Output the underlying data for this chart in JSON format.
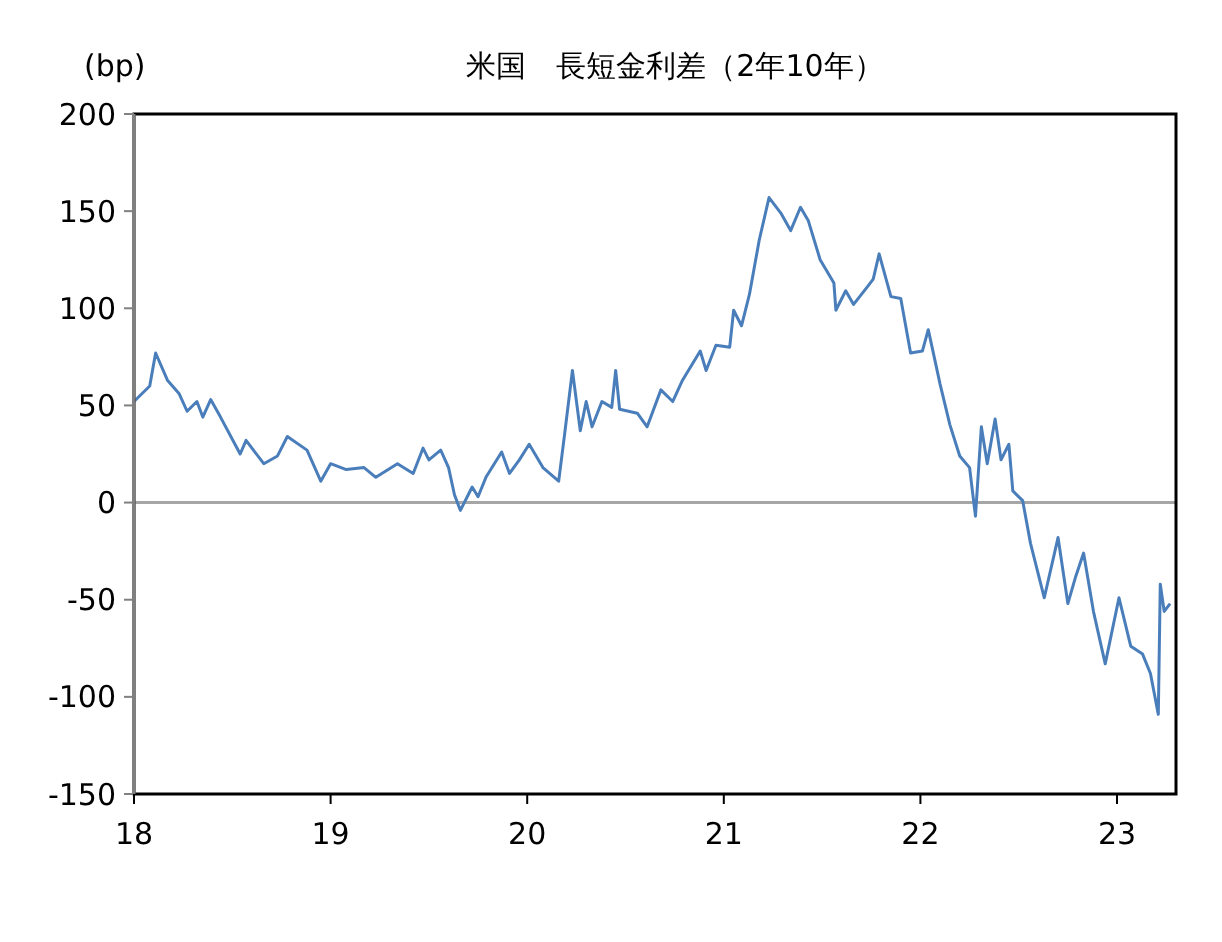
{
  "chart_data": {
    "type": "line",
    "title": "米国　長短金利差（2年10年）",
    "ylabel": "(bp)",
    "x": [
      18.0,
      18.08,
      18.11,
      18.17,
      18.23,
      18.27,
      18.32,
      18.35,
      18.39,
      18.44,
      18.54,
      18.57,
      18.66,
      18.73,
      18.78,
      18.88,
      18.95,
      19.0,
      19.08,
      19.17,
      19.23,
      19.34,
      19.42,
      19.47,
      19.5,
      19.56,
      19.6,
      19.63,
      19.66,
      19.72,
      19.75,
      19.79,
      19.87,
      19.91,
      19.96,
      20.01,
      20.08,
      20.16,
      20.19,
      20.23,
      20.27,
      20.3,
      20.33,
      20.38,
      20.43,
      20.45,
      20.47,
      20.56,
      20.61,
      20.68,
      20.74,
      20.79,
      20.88,
      20.91,
      20.96,
      21.03,
      21.05,
      21.09,
      21.13,
      21.18,
      21.23,
      21.29,
      21.34,
      21.39,
      21.43,
      21.49,
      21.56,
      21.57,
      21.62,
      21.66,
      21.73,
      21.76,
      21.79,
      21.85,
      21.9,
      21.95,
      22.01,
      22.04,
      22.1,
      22.15,
      22.2,
      22.25,
      22.28,
      22.31,
      22.34,
      22.38,
      22.41,
      22.45,
      22.47,
      22.52,
      22.56,
      22.63,
      22.7,
      22.75,
      22.79,
      22.83,
      22.88,
      22.94,
      23.01,
      23.07,
      23.13,
      23.17,
      23.21,
      23.22,
      23.24,
      23.27
    ],
    "series": [
      {
        "color": "#4a7ebb",
        "values": [
          52,
          60,
          77,
          63,
          56,
          47,
          52,
          44,
          53,
          44,
          25,
          32,
          20,
          24,
          34,
          27,
          11,
          20,
          17,
          18,
          13,
          20,
          15,
          28,
          22,
          27,
          18,
          4,
          -4,
          8,
          3,
          13,
          26,
          15,
          22,
          30,
          18,
          11,
          35,
          68,
          37,
          52,
          39,
          52,
          49,
          68,
          48,
          46,
          39,
          58,
          52,
          63,
          78,
          68,
          81,
          80,
          99,
          91,
          107,
          135,
          157,
          149,
          140,
          152,
          145,
          125,
          113,
          99,
          109,
          102,
          111,
          115,
          128,
          106,
          105,
          77,
          78,
          89,
          61,
          40,
          24,
          18,
          -7,
          39,
          20,
          43,
          22,
          30,
          6,
          1,
          -21,
          -49,
          -18,
          -52,
          -38,
          -26,
          -56,
          -83,
          -49,
          -74,
          -78,
          -88,
          -109,
          -42,
          -56,
          -52
        ]
      }
    ],
    "xlim": [
      18,
      23.3
    ],
    "xticks": [
      18,
      19,
      20,
      21,
      22,
      23
    ],
    "ylim": [
      -150,
      200
    ],
    "yticks": [
      -150,
      -100,
      -50,
      0,
      50,
      100,
      150,
      200
    ],
    "ref_lines": [
      {
        "axis": "y",
        "value": 0,
        "color": "#a6a6a6"
      }
    ],
    "grid": false,
    "marker": "none",
    "line_style": "solid"
  }
}
